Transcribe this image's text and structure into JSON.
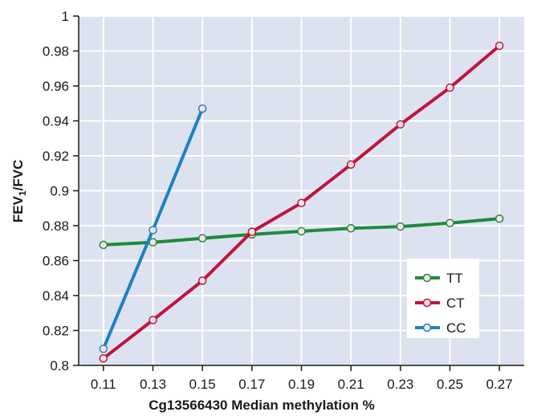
{
  "chart_data": {
    "type": "line",
    "title": "",
    "xlabel": "Cg13566430 Median methylation %",
    "ylabel": {
      "main": "FEV",
      "sub": "1",
      "rest": "/FVC"
    },
    "x": [
      0.11,
      0.13,
      0.15,
      0.17,
      0.19,
      0.21,
      0.23,
      0.25,
      0.27
    ],
    "x_tick_labels": [
      "0.11",
      "0.13",
      "0.15",
      "0.17",
      "0.19",
      "0.21",
      "0.23",
      "0.25",
      "0.27"
    ],
    "xlim": [
      0.1,
      0.28
    ],
    "ylim": [
      0.8,
      1.0
    ],
    "y_ticks": [
      0.8,
      0.82,
      0.84,
      0.86,
      0.88,
      0.9,
      0.92,
      0.94,
      0.96,
      0.98,
      1.0
    ],
    "y_tick_labels": [
      "0.8",
      "0.82",
      "0.84",
      "0.86",
      "0.88",
      "0.9",
      "0.92",
      "0.94",
      "0.96",
      "0.98",
      "1"
    ],
    "grid": true,
    "legend_position": "bottom-right",
    "colors": {
      "plot_background": "#dde2f1",
      "grid": "#ffffff"
    },
    "series": [
      {
        "name": "TT",
        "color": "#1f8a3c",
        "x": [
          0.11,
          0.13,
          0.15,
          0.17,
          0.19,
          0.21,
          0.23,
          0.25,
          0.27
        ],
        "y": [
          0.869,
          0.8705,
          0.8728,
          0.875,
          0.8768,
          0.8785,
          0.8795,
          0.8815,
          0.884
        ]
      },
      {
        "name": "CT",
        "color": "#c0143c",
        "x": [
          0.11,
          0.13,
          0.15,
          0.17,
          0.19,
          0.21,
          0.23,
          0.25,
          0.27
        ],
        "y": [
          0.804,
          0.826,
          0.8485,
          0.8765,
          0.893,
          0.915,
          0.938,
          0.959,
          0.983
        ]
      },
      {
        "name": "CC",
        "color": "#1b83c0",
        "x": [
          0.11,
          0.13,
          0.15
        ],
        "y": [
          0.8095,
          0.8775,
          0.947
        ]
      }
    ]
  }
}
